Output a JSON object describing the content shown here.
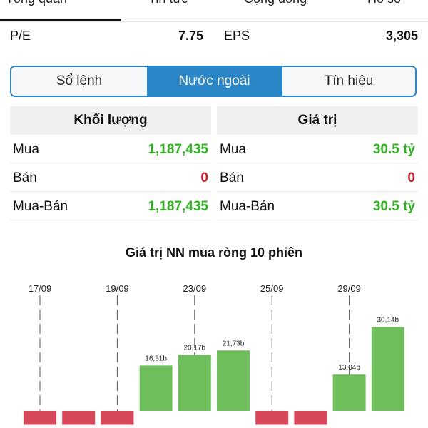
{
  "nav": {
    "tabs": [
      {
        "label": "Tổng quan",
        "active": true
      },
      {
        "label": "Tin tức",
        "active": false
      },
      {
        "label": "Cộng đồng",
        "active": false
      },
      {
        "label": "Hồ sơ",
        "active": false
      }
    ]
  },
  "metrics": {
    "pe_label": "P/E",
    "pe_value": "7.75",
    "eps_label": "EPS",
    "eps_value": "3,305"
  },
  "segments": {
    "items": [
      "Sổ lệnh",
      "Nước ngoài",
      "Tín hiệu"
    ],
    "active": "Nước ngoài"
  },
  "volume_table": {
    "header": "Khối lượng",
    "rows": [
      {
        "label": "Mua",
        "value": "1,187,435",
        "color": "#2fb51f"
      },
      {
        "label": "Bán",
        "value": "0",
        "color": "#c51e2a"
      },
      {
        "label": "Mua-Bán",
        "value": "1,187,435",
        "color": "#2fb51f"
      }
    ]
  },
  "value_table": {
    "header": "Giá trị",
    "rows": [
      {
        "label": "Mua",
        "value": "30.5 tỷ",
        "color": "#2fb51f"
      },
      {
        "label": "Bán",
        "value": "0",
        "color": "#c51e2a"
      },
      {
        "label": "Mua-Bán",
        "value": "30.5 tỷ",
        "color": "#2fb51f"
      }
    ]
  },
  "chart_title": "Giá trị NN mua ròng 10 phiên",
  "chart_data": {
    "type": "bar",
    "title": "Giá trị NN mua ròng 10 phiên",
    "x_tick_labels": [
      "17/09",
      "19/09",
      "23/09",
      "25/09",
      "29/09"
    ],
    "bars": [
      {
        "value": -5,
        "label": ""
      },
      {
        "value": -5,
        "label": ""
      },
      {
        "value": -5,
        "label": ""
      },
      {
        "value": 16.31,
        "label": "16,31b"
      },
      {
        "value": 20.17,
        "label": "20,17b"
      },
      {
        "value": 21.73,
        "label": "21,73b"
      },
      {
        "value": -5,
        "label": ""
      },
      {
        "value": -5,
        "label": ""
      },
      {
        "value": 13.04,
        "label": "13,04b"
      },
      {
        "value": 30.14,
        "label": "30,14b"
      }
    ],
    "positive_color": "#6ebf5c",
    "negative_color": "#d9485a"
  }
}
